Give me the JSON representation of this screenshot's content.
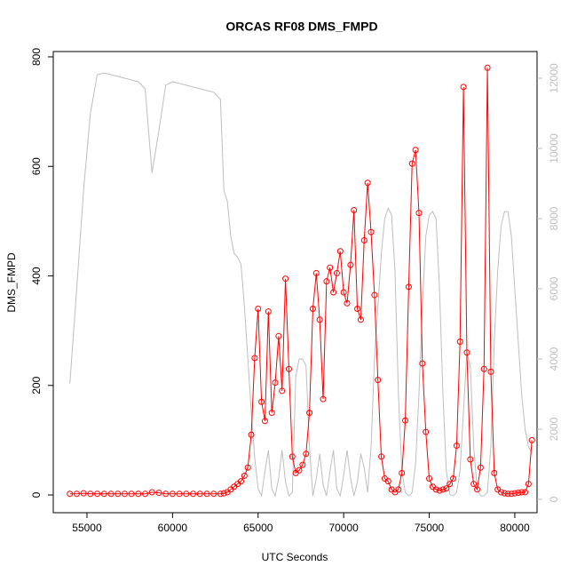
{
  "chart_data": {
    "type": "line",
    "title": "ORCAS RF08 DMS_FMPD",
    "xlabel": "UTC Seconds",
    "ylabel": "DMS_FMPD",
    "x": [
      54000,
      54400,
      54800,
      55200,
      55600,
      56000,
      56400,
      56800,
      57200,
      57600,
      58000,
      58400,
      58800,
      59200,
      59600,
      60000,
      60400,
      60800,
      61200,
      61600,
      62000,
      62400,
      62800,
      63000,
      63200,
      63400,
      63600,
      63800,
      64000,
      64200,
      64400,
      64600,
      64800,
      65000,
      65200,
      65400,
      65600,
      65800,
      66000,
      66200,
      66400,
      66600,
      66800,
      67000,
      67200,
      67400,
      67600,
      67800,
      68000,
      68200,
      68400,
      68600,
      68800,
      69000,
      69200,
      69400,
      69600,
      69800,
      70000,
      70200,
      70400,
      70600,
      70800,
      71000,
      71200,
      71400,
      71600,
      71800,
      72000,
      72200,
      72400,
      72600,
      72800,
      73000,
      73200,
      73400,
      73600,
      73800,
      74000,
      74200,
      74400,
      74600,
      74800,
      75000,
      75200,
      75400,
      75600,
      75800,
      76000,
      76200,
      76400,
      76600,
      76800,
      77000,
      77200,
      77400,
      77600,
      77800,
      78000,
      78200,
      78400,
      78600,
      78800,
      79000,
      79200,
      79400,
      79600,
      79800,
      80000,
      80200,
      80400,
      80600,
      80800,
      81000
    ],
    "series": [
      {
        "color": "#bebebe",
        "axis": "y2",
        "marker": false,
        "values": [
          3300,
          6000,
          8800,
          11000,
          12100,
          12150,
          12100,
          12050,
          12000,
          11950,
          11900,
          11700,
          9300,
          10500,
          11800,
          11900,
          11850,
          11800,
          11750,
          11700,
          11650,
          11600,
          11400,
          8800,
          8500,
          7500,
          7000,
          6900,
          6700,
          5500,
          4000,
          2500,
          1200,
          300,
          100,
          800,
          1400,
          300,
          100,
          600,
          1400,
          500,
          100,
          200,
          3500,
          4000,
          4000,
          3800,
          1500,
          100,
          600,
          1300,
          400,
          100,
          800,
          1400,
          300,
          100,
          700,
          1400,
          600,
          100,
          500,
          1300,
          900,
          200,
          1500,
          4000,
          5500,
          7000,
          8000,
          8300,
          8100,
          6500,
          3000,
          800,
          200,
          100,
          200,
          1000,
          3000,
          5500,
          7500,
          8100,
          8200,
          8000,
          6000,
          3000,
          800,
          150,
          100,
          200,
          800,
          2500,
          4200,
          3800,
          1500,
          300,
          100,
          100,
          200,
          1500,
          4500,
          6500,
          7800,
          8200,
          8200,
          7500,
          6000,
          4500,
          3000,
          2000,
          1500,
          1300
        ]
      },
      {
        "color": "#ff0000",
        "marker": true,
        "values": [
          2,
          2,
          3,
          2,
          2,
          2,
          2,
          2,
          2,
          2,
          2,
          2,
          5,
          4,
          2,
          2,
          2,
          2,
          2,
          2,
          2,
          2,
          2,
          3,
          5,
          10,
          15,
          20,
          25,
          35,
          50,
          110,
          250,
          340,
          170,
          135,
          335,
          150,
          205,
          290,
          190,
          395,
          230,
          70,
          40,
          45,
          55,
          75,
          150,
          340,
          405,
          320,
          175,
          390,
          415,
          370,
          405,
          445,
          370,
          350,
          420,
          520,
          340,
          320,
          465,
          570,
          480,
          365,
          210,
          70,
          30,
          25,
          10,
          5,
          10,
          40,
          136,
          380,
          605,
          630,
          515,
          240,
          115,
          30,
          15,
          10,
          8,
          10,
          12,
          20,
          30,
          90,
          280,
          745,
          260,
          65,
          20,
          10,
          50,
          230,
          780,
          225,
          40,
          10,
          5,
          3,
          2,
          2,
          3,
          4,
          5,
          5,
          20,
          100
        ]
      }
    ],
    "xlim": [
      53030,
      81300
    ],
    "xticks": [
      55000,
      60000,
      65000,
      70000,
      75000,
      80000
    ],
    "ylim": [
      -32.4,
      809.7
    ],
    "yticks": [
      0,
      200,
      400,
      600,
      800
    ],
    "y2lim": [
      -380,
      12760
    ],
    "y2ticks": [
      0,
      2000,
      4000,
      6000,
      8000,
      10000,
      12000
    ]
  }
}
